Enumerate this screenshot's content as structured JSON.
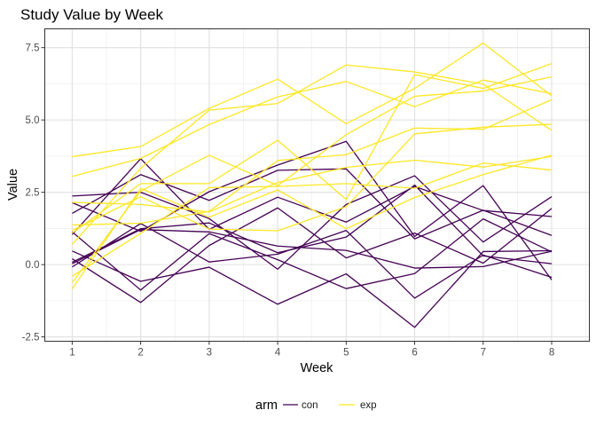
{
  "chart_data": {
    "type": "line",
    "title": "Study Value by Week",
    "xlabel": "Week",
    "ylabel": "Value",
    "xlim": [
      0.6,
      8.55
    ],
    "ylim": [
      -2.65,
      8.15
    ],
    "x_ticks": [
      1,
      2,
      3,
      4,
      5,
      6,
      7,
      8
    ],
    "x_tick_labels": [
      "1",
      "2",
      "3",
      "4",
      "5",
      "6",
      "7",
      "8"
    ],
    "y_ticks": [
      -2.5,
      0,
      2.5,
      5,
      7.5
    ],
    "y_tick_labels": [
      "-2.5",
      "0.0",
      "2.5",
      "5.0",
      "7.5"
    ],
    "y_minor_ticks": [
      -1.25,
      1.25,
      3.75,
      6.25
    ],
    "grid": true,
    "legend": {
      "title": "arm",
      "position": "bottom",
      "entries": [
        "con",
        "exp"
      ]
    },
    "colors": {
      "con": "#440154",
      "exp": "#fde725"
    },
    "series": [
      {
        "group": "con",
        "values": [
          0.2,
          -1.31,
          0.66,
          1.96,
          0.23,
          1.09,
          0.05,
          1.94
        ]
      },
      {
        "group": "con",
        "values": [
          1.13,
          -0.88,
          1.07,
          0.17,
          -0.83,
          -0.31,
          1.58,
          0.44
        ]
      },
      {
        "group": "con",
        "values": [
          1.77,
          3.11,
          2.22,
          3.26,
          3.31,
          0.89,
          1.88,
          1.01
        ]
      },
      {
        "group": "con",
        "values": [
          1.04,
          3.66,
          1.22,
          2.33,
          1.47,
          2.7,
          1.87,
          1.66
        ]
      },
      {
        "group": "con",
        "values": [
          0.47,
          -0.58,
          -0.09,
          -1.37,
          -0.32,
          -2.17,
          0.45,
          0.48
        ]
      },
      {
        "group": "con",
        "values": [
          2.37,
          2.5,
          1.59,
          -0.16,
          2.08,
          3.07,
          0.78,
          2.35
        ]
      },
      {
        "group": "con",
        "values": [
          0.03,
          1.21,
          1.13,
          0.64,
          0.49,
          -0.12,
          -0.07,
          0.46
        ]
      },
      {
        "group": "con",
        "values": [
          -0.08,
          1.42,
          0.09,
          0.36,
          1.18,
          -1.16,
          0.33,
          -0.44
        ]
      },
      {
        "group": "con",
        "values": [
          0.08,
          1.24,
          1.44,
          0.41,
          0.95,
          2.75,
          0.3,
          0.03
        ]
      },
      {
        "group": "con",
        "values": [
          2.14,
          1.15,
          2.52,
          3.44,
          4.26,
          0.97,
          2.73,
          -0.53
        ]
      },
      {
        "group": "exp",
        "values": [
          3.05,
          3.67,
          4.84,
          5.8,
          6.33,
          5.46,
          6.38,
          5.91
        ]
      },
      {
        "group": "exp",
        "values": [
          -0.84,
          2.63,
          1.64,
          2.58,
          1.24,
          2.32,
          3.11,
          3.78
        ]
      },
      {
        "group": "exp",
        "values": [
          2.15,
          2.08,
          1.82,
          2.84,
          3.36,
          3.61,
          3.37,
          3.74
        ]
      },
      {
        "group": "exp",
        "values": [
          -0.62,
          2.54,
          3.78,
          2.73,
          4.49,
          5.82,
          6.0,
          6.49
        ]
      },
      {
        "group": "exp",
        "values": [
          0.7,
          3.33,
          5.34,
          5.57,
          6.9,
          6.66,
          6.24,
          4.64
        ]
      },
      {
        "group": "exp",
        "values": [
          3.73,
          4.08,
          5.4,
          6.41,
          4.87,
          6.09,
          7.66,
          5.83
        ]
      },
      {
        "group": "exp",
        "values": [
          1.18,
          2.35,
          1.23,
          1.17,
          2.0,
          4.52,
          4.75,
          4.85
        ]
      },
      {
        "group": "exp",
        "values": [
          1.37,
          1.43,
          1.84,
          3.6,
          3.8,
          4.72,
          4.68,
          5.7
        ]
      },
      {
        "group": "exp",
        "values": [
          -0.4,
          1.08,
          2.66,
          2.7,
          2.8,
          2.64,
          3.51,
          3.27
        ]
      },
      {
        "group": "exp",
        "values": [
          1.09,
          2.8,
          2.8,
          4.3,
          2.25,
          6.57,
          6.09,
          6.95
        ]
      }
    ]
  }
}
